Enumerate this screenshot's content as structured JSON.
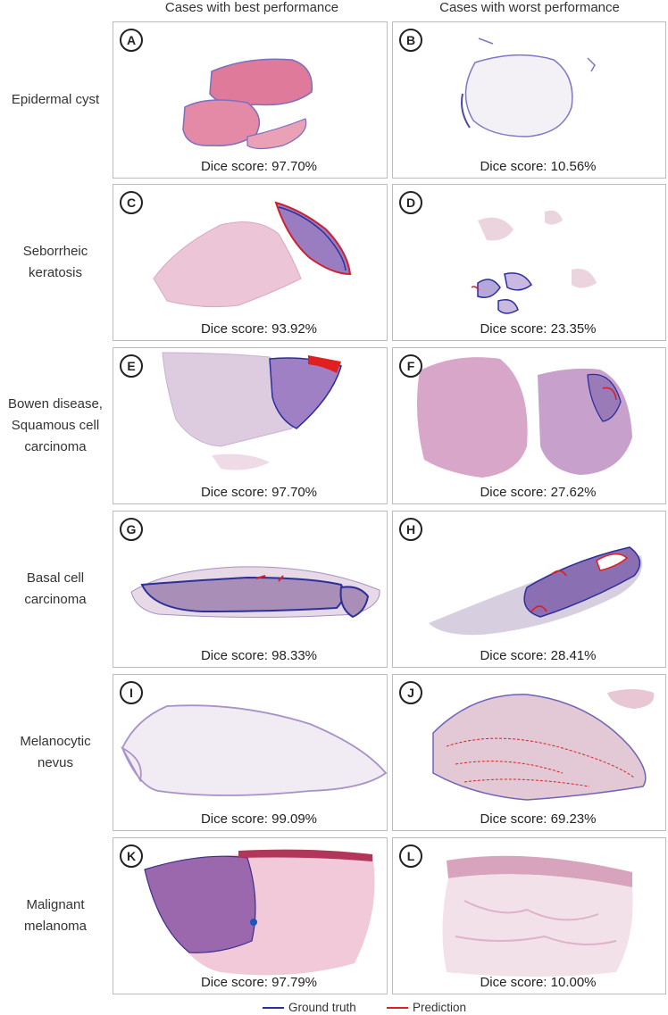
{
  "headers": {
    "best": "Cases with best performance",
    "worst": "Cases with worst performance"
  },
  "rows": [
    {
      "label": [
        "Epidermal cyst"
      ],
      "best": {
        "letter": "A",
        "dice": "Dice score: 97.70%"
      },
      "worst": {
        "letter": "B",
        "dice": "Dice score: 10.56%"
      }
    },
    {
      "label": [
        "Seborrheic",
        "keratosis"
      ],
      "best": {
        "letter": "C",
        "dice": "Dice score: 93.92%"
      },
      "worst": {
        "letter": "D",
        "dice": "Dice score: 23.35%"
      }
    },
    {
      "label": [
        "Bowen disease,",
        "Squamous cell",
        "carcinoma"
      ],
      "best": {
        "letter": "E",
        "dice": "Dice score: 97.70%"
      },
      "worst": {
        "letter": "F",
        "dice": "Dice score: 27.62%"
      }
    },
    {
      "label": [
        "Basal cell",
        "carcinoma"
      ],
      "best": {
        "letter": "G",
        "dice": "Dice score: 98.33%"
      },
      "worst": {
        "letter": "H",
        "dice": "Dice score: 28.41%"
      }
    },
    {
      "label": [
        "Melanocytic",
        "nevus"
      ],
      "best": {
        "letter": "I",
        "dice": "Dice score: 99.09%"
      },
      "worst": {
        "letter": "J",
        "dice": "Dice score: 69.23%"
      }
    },
    {
      "label": [
        "Malignant",
        "melanoma"
      ],
      "best": {
        "letter": "K",
        "dice": "Dice score: 97.79%"
      },
      "worst": {
        "letter": "L",
        "dice": "Dice score: 10.00%"
      }
    }
  ],
  "legend": {
    "ground_truth": {
      "label": "Ground truth",
      "color": "#2b2f9c"
    },
    "prediction": {
      "label": "Prediction",
      "color": "#e02020"
    }
  },
  "colors": {
    "tissue_pink": "#e58aa6",
    "tissue_light": "#eccfdc",
    "tissue_purple": "#9b7ab8"
  }
}
